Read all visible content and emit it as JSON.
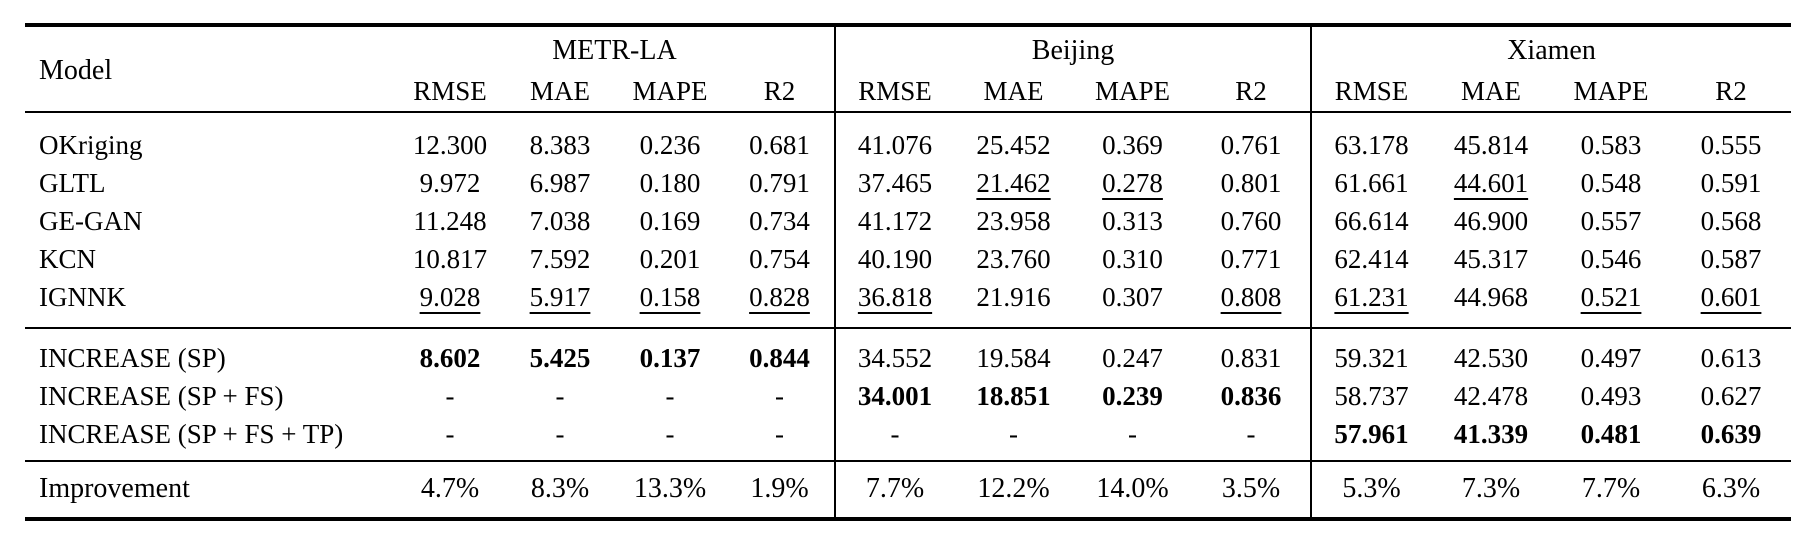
{
  "table": {
    "header": {
      "model": "Model",
      "groups": [
        "METR-LA",
        "Beijing",
        "Xiamen"
      ],
      "metrics": [
        "RMSE",
        "MAE",
        "MAPE",
        "R2"
      ]
    },
    "baseline_rows": [
      {
        "model": "OKriging",
        "values": [
          "12.300",
          "8.383",
          "0.236",
          "0.681",
          "41.076",
          "25.452",
          "0.369",
          "0.761",
          "63.178",
          "45.814",
          "0.583",
          "0.555"
        ]
      },
      {
        "model": "GLTL",
        "values": [
          "9.972",
          "6.987",
          "0.180",
          "0.791",
          "37.465",
          "21.462",
          "0.278",
          "0.801",
          "61.661",
          "44.601",
          "0.548",
          "0.591"
        ]
      },
      {
        "model": "GE-GAN",
        "values": [
          "11.248",
          "7.038",
          "0.169",
          "0.734",
          "41.172",
          "23.958",
          "0.313",
          "0.760",
          "66.614",
          "46.900",
          "0.557",
          "0.568"
        ]
      },
      {
        "model": "KCN",
        "values": [
          "10.817",
          "7.592",
          "0.201",
          "0.754",
          "40.190",
          "23.760",
          "0.310",
          "0.771",
          "62.414",
          "45.317",
          "0.546",
          "0.587"
        ]
      },
      {
        "model": "IGNNK",
        "values": [
          "9.028",
          "5.917",
          "0.158",
          "0.828",
          "36.818",
          "21.916",
          "0.307",
          "0.808",
          "61.231",
          "44.968",
          "0.521",
          "0.601"
        ]
      }
    ],
    "increase_rows": [
      {
        "model": "INCREASE (SP)",
        "values": [
          "8.602",
          "5.425",
          "0.137",
          "0.844",
          "34.552",
          "19.584",
          "0.247",
          "0.831",
          "59.321",
          "42.530",
          "0.497",
          "0.613"
        ]
      },
      {
        "model": "INCREASE (SP + FS)",
        "values": [
          "-",
          "-",
          "-",
          "-",
          "34.001",
          "18.851",
          "0.239",
          "0.836",
          "58.737",
          "42.478",
          "0.493",
          "0.627"
        ]
      },
      {
        "model": "INCREASE (SP + FS + TP)",
        "values": [
          "-",
          "-",
          "-",
          "-",
          "-",
          "-",
          "-",
          "-",
          "57.961",
          "41.339",
          "0.481",
          "0.639"
        ]
      }
    ],
    "improvement_row": {
      "label": "Improvement",
      "values": [
        "4.7%",
        "8.3%",
        "13.3%",
        "1.9%",
        "7.7%",
        "12.2%",
        "14.0%",
        "3.5%",
        "5.3%",
        "7.3%",
        "7.7%",
        "6.3%"
      ]
    }
  }
}
